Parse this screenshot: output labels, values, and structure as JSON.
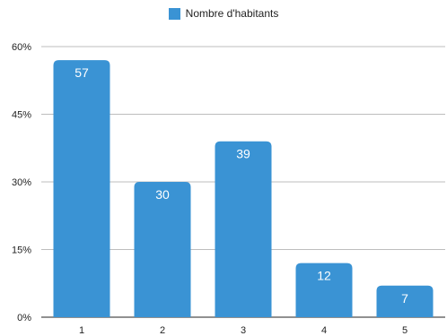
{
  "colors": {
    "bar": "#3a93d4",
    "grid": "#bdbdbd",
    "axis": "#222222",
    "text": "#222222",
    "label": "#ffffff"
  },
  "legend": {
    "label": "Nombre d'habitants",
    "position": "top-center"
  },
  "chart_data": {
    "type": "bar",
    "title": "",
    "xlabel": "",
    "ylabel": "",
    "categories": [
      "1",
      "2",
      "3",
      "4",
      "5"
    ],
    "series": [
      {
        "name": "Nombre d'habitants",
        "values": [
          57,
          30,
          39,
          12,
          7
        ]
      }
    ],
    "ylim": [
      0,
      60
    ],
    "yticks": [
      0,
      15,
      30,
      45,
      60
    ],
    "ytick_labels": [
      "0%",
      "15%",
      "30%",
      "45%",
      "60%"
    ],
    "data_labels": [
      "57",
      "30",
      "39",
      "12",
      "7"
    ],
    "grid": true,
    "legend_position": "top-center"
  }
}
